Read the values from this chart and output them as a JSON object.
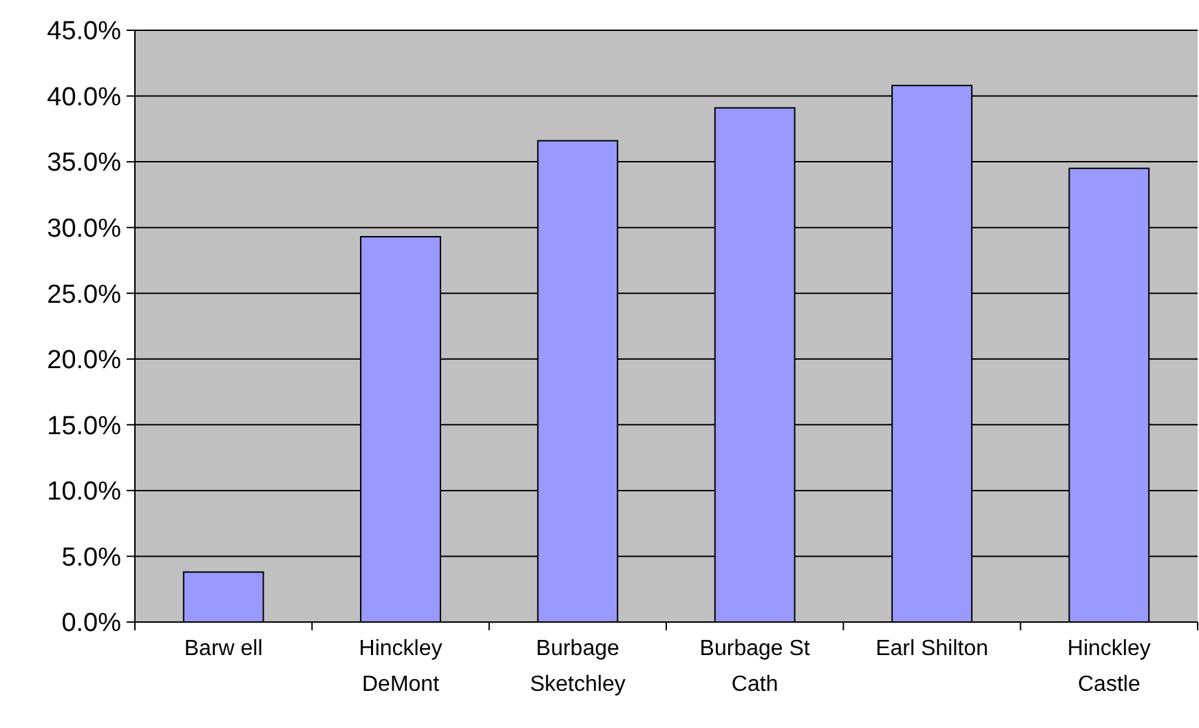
{
  "chart_data": {
    "type": "bar",
    "categories": [
      "Barw ell",
      "Hinckley DeMont",
      "Burbage Sketchley",
      "Burbage St Cath",
      "Earl Shilton",
      "Hinckley Castle"
    ],
    "values": [
      3.8,
      29.3,
      36.6,
      39.1,
      40.8,
      34.5
    ],
    "color": "#9999ff",
    "ylim": [
      0,
      45
    ],
    "yticks": [
      {
        "value": 0,
        "label": "0.0%"
      },
      {
        "value": 5,
        "label": "5.0%"
      },
      {
        "value": 10,
        "label": "10.0%"
      },
      {
        "value": 15,
        "label": "15.0%"
      },
      {
        "value": 20,
        "label": "20.0%"
      },
      {
        "value": 25,
        "label": "25.0%"
      },
      {
        "value": 30,
        "label": "30.0%"
      },
      {
        "value": 35,
        "label": "35.0%"
      },
      {
        "value": 40,
        "label": "40.0%"
      },
      {
        "value": 45,
        "label": "45.0%"
      }
    ],
    "grid": "y"
  }
}
